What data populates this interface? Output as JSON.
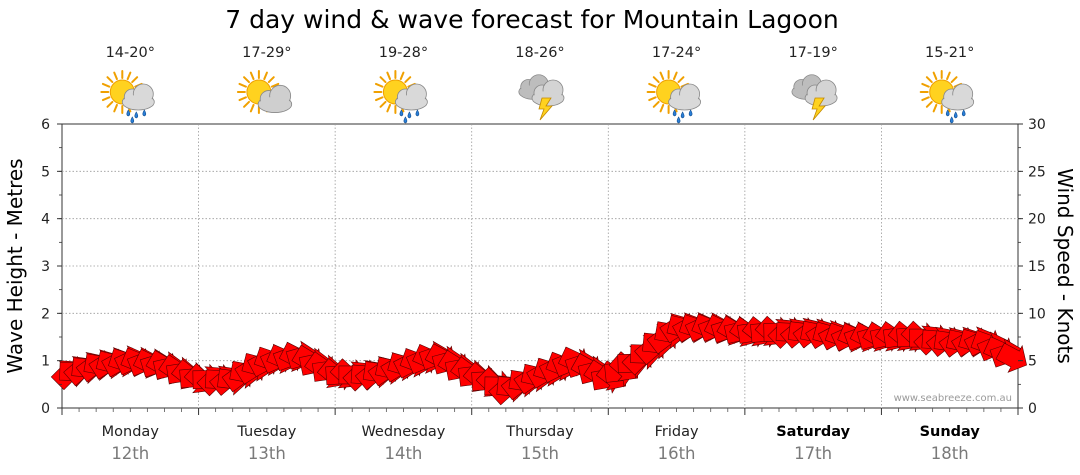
{
  "chart_data": {
    "type": "line",
    "title": "7 day wind & wave forecast for Mountain Lagoon",
    "ylabel_left": "Wave Height - Metres",
    "ylabel_right": "Wind Speed - Knots",
    "ylim_left": [
      0,
      6
    ],
    "ylim_right": [
      0,
      30
    ],
    "yticks_left": [
      "0",
      "1",
      "2",
      "3",
      "4",
      "5",
      "6"
    ],
    "yticks_right": [
      "0",
      "5",
      "10",
      "15",
      "20",
      "25",
      "30"
    ],
    "grid": true,
    "credit": "www.seabreeze.com.au",
    "days": [
      {
        "name": "Monday",
        "date": "12th",
        "temp": "14-20°",
        "icon": "sun-cloud-rain-icon",
        "bold": false
      },
      {
        "name": "Tuesday",
        "date": "13th",
        "temp": "17-29°",
        "icon": "sun-cloud-icon",
        "bold": false
      },
      {
        "name": "Wednesday",
        "date": "14th",
        "temp": "19-28°",
        "icon": "sun-cloud-rain-icon",
        "bold": false
      },
      {
        "name": "Thursday",
        "date": "15th",
        "temp": "18-26°",
        "icon": "storm-cloud-icon",
        "bold": false
      },
      {
        "name": "Friday",
        "date": "16th",
        "temp": "17-24°",
        "icon": "sun-cloud-rain-icon",
        "bold": false
      },
      {
        "name": "Saturday",
        "date": "17th",
        "temp": "17-19°",
        "icon": "storm-cloud-icon",
        "bold": true
      },
      {
        "name": "Sunday",
        "date": "18th",
        "temp": "15-21°",
        "icon": "sun-cloud-rain-icon",
        "bold": true
      }
    ],
    "series": [
      {
        "name": "Wind Speed (knots)",
        "color": "#ff0000",
        "x_days": [
          0.0,
          0.25,
          0.5,
          0.75,
          1.0,
          1.25,
          1.5,
          1.75,
          2.0,
          2.25,
          2.5,
          2.75,
          3.0,
          3.25,
          3.5,
          3.75,
          4.0,
          4.25,
          4.5,
          4.75,
          5.0,
          5.25,
          5.5,
          5.75,
          6.0,
          6.25,
          6.5,
          6.75,
          7.0
        ],
        "values": [
          3.5,
          4.5,
          5.0,
          4.5,
          3.0,
          3.0,
          5.0,
          5.5,
          3.5,
          3.5,
          4.5,
          5.5,
          3.5,
          2.0,
          3.5,
          5.0,
          3.0,
          5.5,
          8.5,
          8.5,
          8.0,
          8.0,
          8.0,
          7.5,
          7.5,
          7.5,
          7.0,
          7.0,
          5.0
        ]
      }
    ]
  }
}
